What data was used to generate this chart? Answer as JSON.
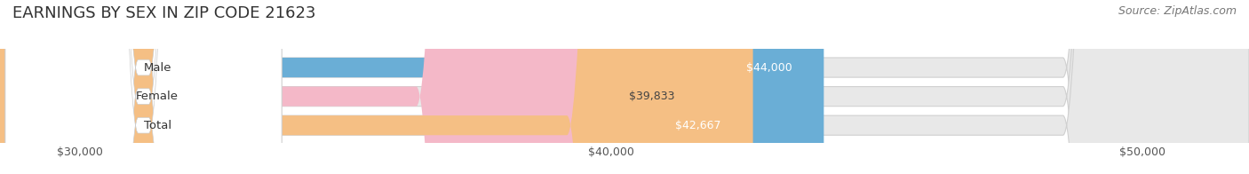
{
  "title": "EARNINGS BY SEX IN ZIP CODE 21623",
  "source": "Source: ZipAtlas.com",
  "categories": [
    "Male",
    "Female",
    "Total"
  ],
  "values": [
    44000,
    39833,
    42667
  ],
  "bar_colors": [
    "#6aaed6",
    "#f4b8c8",
    "#f5bf84"
  ],
  "track_color": "#e8e8e8",
  "track_border_color": "#d0d0d0",
  "label_texts": [
    "$44,000",
    "$39,833",
    "$42,667"
  ],
  "value_label_inside": [
    true,
    false,
    true
  ],
  "xmin": 28500,
  "xmax": 52000,
  "data_min": 28500,
  "xticks": [
    30000,
    40000,
    50000
  ],
  "xtick_labels": [
    "$30,000",
    "$40,000",
    "$50,000"
  ],
  "bar_height": 0.68,
  "background_color": "#ffffff",
  "title_fontsize": 13,
  "value_fontsize": 9,
  "source_fontsize": 9,
  "category_fontsize": 9.5,
  "tick_fontsize": 9
}
